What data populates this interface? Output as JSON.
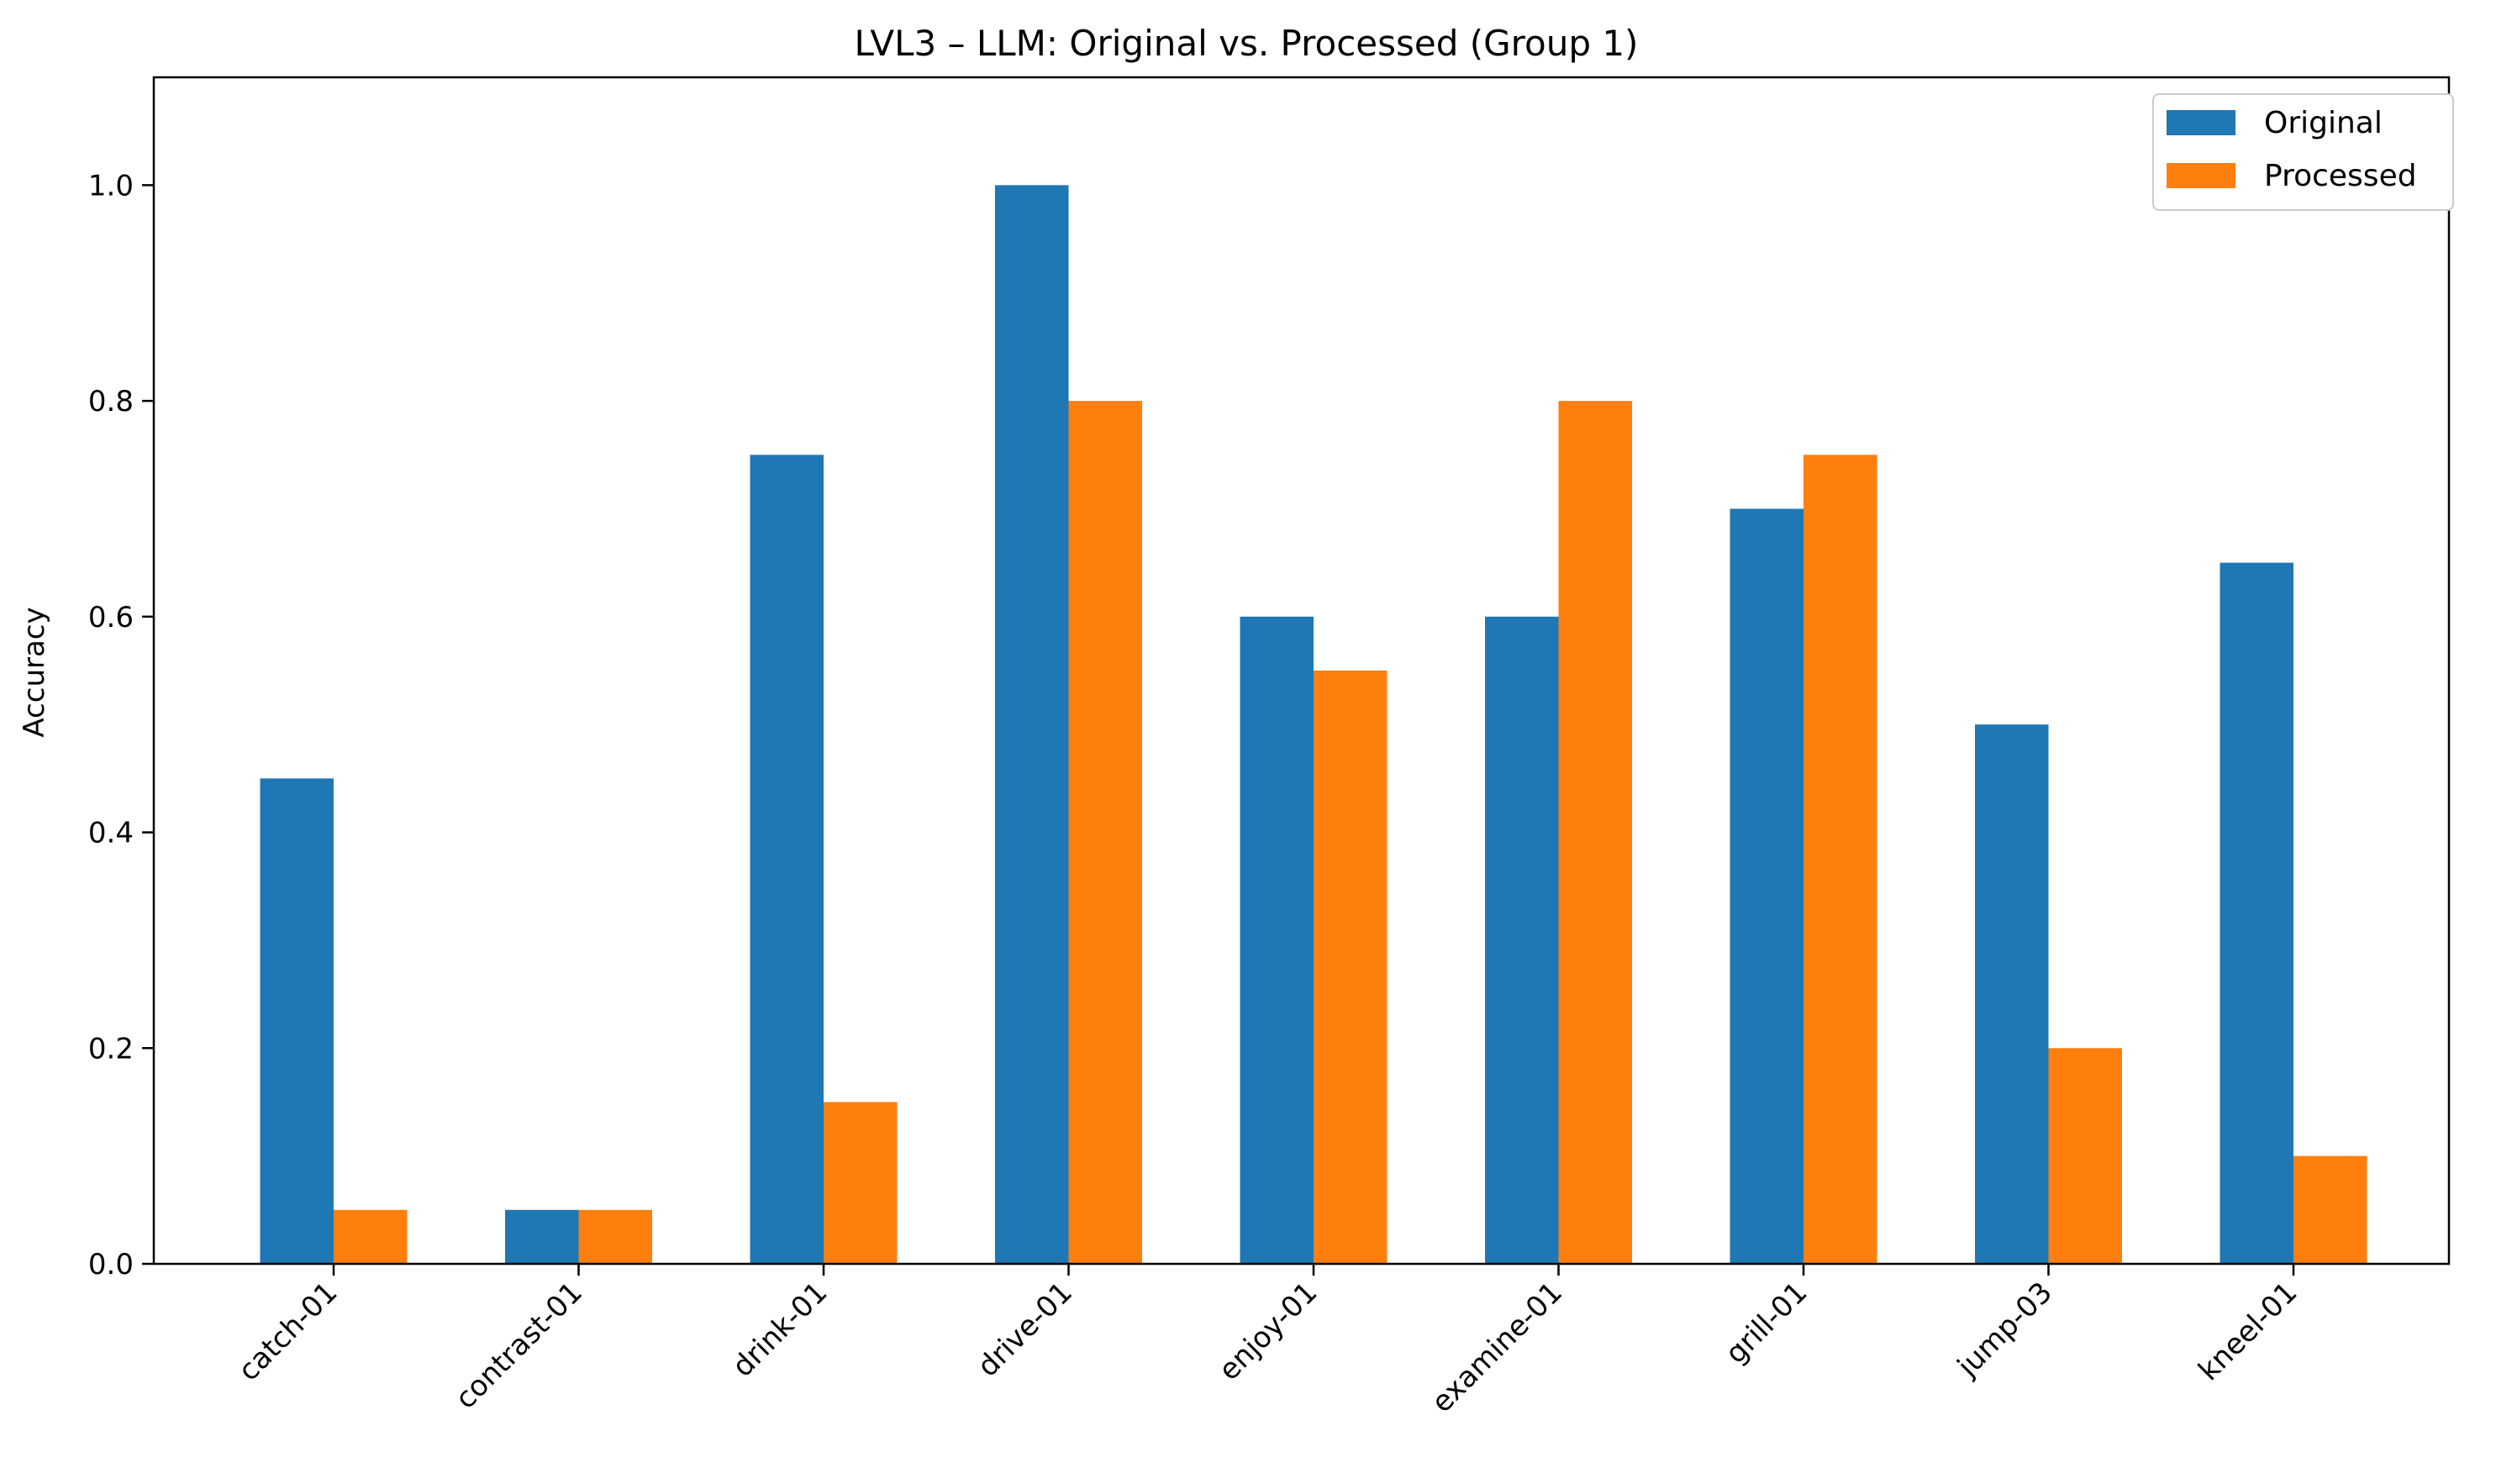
{
  "chart_data": {
    "type": "bar",
    "title": "LVL3 – LLM: Original vs. Processed (Group 1)",
    "xlabel": "",
    "ylabel": "Accuracy",
    "ylim": [
      0,
      1.1
    ],
    "yticks": [
      0.0,
      0.2,
      0.4,
      0.6,
      0.8,
      1.0
    ],
    "ytick_labels": [
      "0.0",
      "0.2",
      "0.4",
      "0.6",
      "0.8",
      "1.0"
    ],
    "grid": false,
    "legend_position": "top-right",
    "categories": [
      "catch-01",
      "contrast-01",
      "drink-01",
      "drive-01",
      "enjoy-01",
      "examine-01",
      "grill-01",
      "jump-03",
      "kneel-01"
    ],
    "series": [
      {
        "name": "Original",
        "color": "#1f77b4",
        "values": [
          0.45,
          0.05,
          0.75,
          1.0,
          0.6,
          0.6,
          0.7,
          0.5,
          0.65
        ]
      },
      {
        "name": "Processed",
        "color": "#ff7f0e",
        "values": [
          0.05,
          0.05,
          0.15,
          0.8,
          0.55,
          0.8,
          0.75,
          0.2,
          0.1
        ]
      }
    ]
  }
}
